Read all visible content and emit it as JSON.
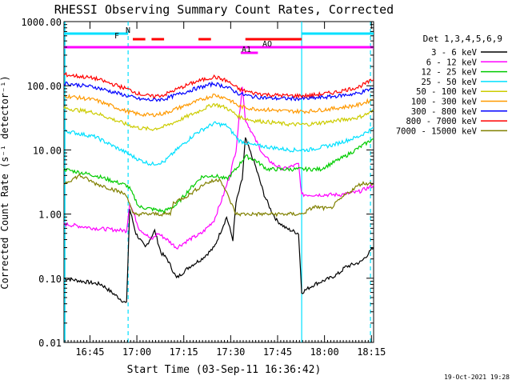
{
  "chart_data": {
    "type": "line",
    "title": "RHESSI Observing Summary Count Rates, Corrected",
    "ylabel": "Corrected Count Rate (s⁻¹ detector⁻¹)",
    "xlabel": "Start Time (03-Sep-11 16:36:42)",
    "yscale": "log",
    "ylim": [
      0.01,
      1000
    ],
    "xlim_minutes_after_start": [
      0,
      99
    ],
    "y_ticks": [
      "1000.00",
      "100.00",
      "10.00",
      "1.00",
      "0.10",
      "0.01"
    ],
    "x_ticks": [
      {
        "label": "16:45",
        "t": 8.3
      },
      {
        "label": "17:00",
        "t": 23.3
      },
      {
        "label": "17:15",
        "t": 38.3
      },
      {
        "label": "17:30",
        "t": 53.3
      },
      {
        "label": "17:45",
        "t": 68.3
      },
      {
        "label": "18:00",
        "t": 83.3
      },
      {
        "label": "18:15",
        "t": 98.3
      }
    ],
    "legend_title": "Det 1,3,4,5,6,9",
    "legend_position": "right",
    "series": [
      {
        "name": "3 - 6 keV",
        "color": "#000000",
        "points": [
          [
            0,
            0.1
          ],
          [
            12,
            0.08
          ],
          [
            20,
            0.04
          ],
          [
            21,
            1.2
          ],
          [
            23,
            0.5
          ],
          [
            26,
            0.3
          ],
          [
            29,
            0.55
          ],
          [
            31,
            0.25
          ],
          [
            33,
            0.2
          ],
          [
            36,
            0.1
          ],
          [
            40,
            0.15
          ],
          [
            44,
            0.2
          ],
          [
            48,
            0.3
          ],
          [
            52,
            0.9
          ],
          [
            54,
            0.4
          ],
          [
            55,
            1.5
          ],
          [
            57,
            3.5
          ],
          [
            58,
            15
          ],
          [
            61,
            6
          ],
          [
            64,
            2
          ],
          [
            66,
            1.2
          ],
          [
            68,
            0.8
          ],
          [
            71,
            0.6
          ],
          [
            75,
            0.5
          ],
          [
            76,
            0.06
          ],
          [
            80,
            0.08
          ],
          [
            85,
            0.1
          ],
          [
            88,
            0.12
          ],
          [
            90,
            0.15
          ],
          [
            95,
            0.18
          ],
          [
            99,
            0.3
          ]
        ]
      },
      {
        "name": "6 - 12 keV",
        "color": "#ff00ff",
        "points": [
          [
            0,
            0.7
          ],
          [
            10,
            0.6
          ],
          [
            20,
            0.55
          ],
          [
            21,
            1.5
          ],
          [
            24,
            0.6
          ],
          [
            28,
            0.4
          ],
          [
            30,
            0.5
          ],
          [
            33,
            0.4
          ],
          [
            36,
            0.3
          ],
          [
            40,
            0.4
          ],
          [
            44,
            0.5
          ],
          [
            48,
            0.8
          ],
          [
            51,
            2
          ],
          [
            53,
            4
          ],
          [
            55,
            10
          ],
          [
            57,
            100
          ],
          [
            58,
            30
          ],
          [
            61,
            15
          ],
          [
            64,
            8
          ],
          [
            67,
            6
          ],
          [
            70,
            5
          ],
          [
            75,
            6
          ],
          [
            76,
            2
          ],
          [
            82,
            2
          ],
          [
            88,
            2
          ],
          [
            94,
            2.2
          ],
          [
            99,
            2.8
          ]
        ]
      },
      {
        "name": "12 - 25 keV",
        "color": "#00cc00",
        "points": [
          [
            0,
            5
          ],
          [
            10,
            4
          ],
          [
            20,
            2.8
          ],
          [
            21,
            2.5
          ],
          [
            24,
            1.3
          ],
          [
            28,
            1.2
          ],
          [
            32,
            1.1
          ],
          [
            36,
            1.4
          ],
          [
            40,
            2.4
          ],
          [
            44,
            3.8
          ],
          [
            48,
            4
          ],
          [
            52,
            3.5
          ],
          [
            55,
            5
          ],
          [
            58,
            8
          ],
          [
            61,
            7
          ],
          [
            65,
            5
          ],
          [
            70,
            5
          ],
          [
            76,
            5
          ],
          [
            82,
            5
          ],
          [
            90,
            8
          ],
          [
            99,
            15
          ]
        ]
      },
      {
        "name": "25 - 50 keV",
        "color": "#00e0ff",
        "points": [
          [
            0,
            20
          ],
          [
            10,
            16
          ],
          [
            20,
            9
          ],
          [
            24,
            7
          ],
          [
            28,
            6
          ],
          [
            32,
            6.5
          ],
          [
            36,
            10
          ],
          [
            42,
            18
          ],
          [
            48,
            26
          ],
          [
            52,
            24
          ],
          [
            56,
            14
          ],
          [
            60,
            12
          ],
          [
            66,
            11
          ],
          [
            72,
            10
          ],
          [
            78,
            10
          ],
          [
            86,
            12
          ],
          [
            94,
            16
          ],
          [
            99,
            22
          ]
        ]
      },
      {
        "name": "50 - 100 keV",
        "color": "#cccc00",
        "points": [
          [
            0,
            45
          ],
          [
            10,
            38
          ],
          [
            20,
            25
          ],
          [
            24,
            22
          ],
          [
            28,
            21
          ],
          [
            32,
            23
          ],
          [
            36,
            28
          ],
          [
            42,
            38
          ],
          [
            48,
            52
          ],
          [
            52,
            45
          ],
          [
            56,
            33
          ],
          [
            60,
            29
          ],
          [
            66,
            27
          ],
          [
            72,
            25
          ],
          [
            78,
            25
          ],
          [
            86,
            28
          ],
          [
            94,
            32
          ],
          [
            99,
            40
          ]
        ]
      },
      {
        "name": "100 - 300 keV",
        "color": "#ff9900",
        "points": [
          [
            0,
            70
          ],
          [
            10,
            60
          ],
          [
            20,
            40
          ],
          [
            24,
            36
          ],
          [
            28,
            35
          ],
          [
            32,
            37
          ],
          [
            36,
            44
          ],
          [
            42,
            56
          ],
          [
            48,
            72
          ],
          [
            52,
            64
          ],
          [
            56,
            48
          ],
          [
            60,
            44
          ],
          [
            66,
            42
          ],
          [
            72,
            40
          ],
          [
            78,
            40
          ],
          [
            86,
            44
          ],
          [
            94,
            50
          ],
          [
            99,
            62
          ]
        ]
      },
      {
        "name": "300 - 800 keV",
        "color": "#0000ff",
        "points": [
          [
            0,
            110
          ],
          [
            10,
            95
          ],
          [
            20,
            70
          ],
          [
            24,
            62
          ],
          [
            28,
            60
          ],
          [
            32,
            62
          ],
          [
            36,
            72
          ],
          [
            42,
            90
          ],
          [
            48,
            108
          ],
          [
            52,
            96
          ],
          [
            56,
            75
          ],
          [
            60,
            68
          ],
          [
            66,
            64
          ],
          [
            72,
            63
          ],
          [
            78,
            63
          ],
          [
            86,
            68
          ],
          [
            94,
            76
          ],
          [
            99,
            92
          ]
        ]
      },
      {
        "name": "800 - 7000 keV",
        "color": "#ff0000",
        "points": [
          [
            0,
            150
          ],
          [
            10,
            130
          ],
          [
            20,
            90
          ],
          [
            24,
            75
          ],
          [
            28,
            68
          ],
          [
            32,
            72
          ],
          [
            36,
            88
          ],
          [
            42,
            115
          ],
          [
            48,
            138
          ],
          [
            52,
            120
          ],
          [
            56,
            88
          ],
          [
            60,
            78
          ],
          [
            66,
            72
          ],
          [
            72,
            70
          ],
          [
            78,
            70
          ],
          [
            86,
            78
          ],
          [
            94,
            95
          ],
          [
            99,
            125
          ]
        ]
      },
      {
        "name": "7000 - 15000 keV",
        "color": "#808000",
        "points": [
          [
            0,
            3
          ],
          [
            5,
            4
          ],
          [
            10,
            3
          ],
          [
            15,
            2.5
          ],
          [
            20,
            2
          ],
          [
            22,
            1
          ],
          [
            34,
            1
          ],
          [
            35,
            1.5
          ],
          [
            40,
            2
          ],
          [
            45,
            3
          ],
          [
            50,
            3.5
          ],
          [
            55,
            1
          ],
          [
            76,
            1
          ],
          [
            80,
            1.3
          ],
          [
            85,
            1.2
          ],
          [
            90,
            2
          ],
          [
            95,
            3
          ],
          [
            99,
            3
          ]
        ]
      }
    ],
    "annotations": [
      {
        "label": "N",
        "color": "#00e0ff",
        "kind": "bar",
        "t_ranges": [
          [
            0,
            20.5
          ],
          [
            76,
            99
          ]
        ]
      },
      {
        "label": "F",
        "color": "#ff0000",
        "kind": "bar",
        "t_ranges": [
          [
            22,
            26
          ],
          [
            28,
            32
          ],
          [
            43,
            47
          ],
          [
            58,
            76
          ]
        ]
      },
      {
        "label": "AO",
        "color": "#ff00ff",
        "kind": "bar",
        "t_ranges": [
          [
            0,
            99
          ]
        ]
      },
      {
        "label": "A1",
        "color": "#ff00ff",
        "kind": "bar",
        "t_ranges": [
          [
            56.5,
            62
          ]
        ]
      }
    ],
    "vlines": [
      {
        "t": 20.5,
        "color": "#00e0ff",
        "style": "dashed"
      },
      {
        "t": 76,
        "color": "#00e0ff",
        "style": "solid"
      },
      {
        "t": 98,
        "color": "#00e0ff",
        "style": "dashed"
      }
    ],
    "grid": false
  },
  "footer": {
    "date_stamp": "19-Oct-2021 19:28"
  }
}
